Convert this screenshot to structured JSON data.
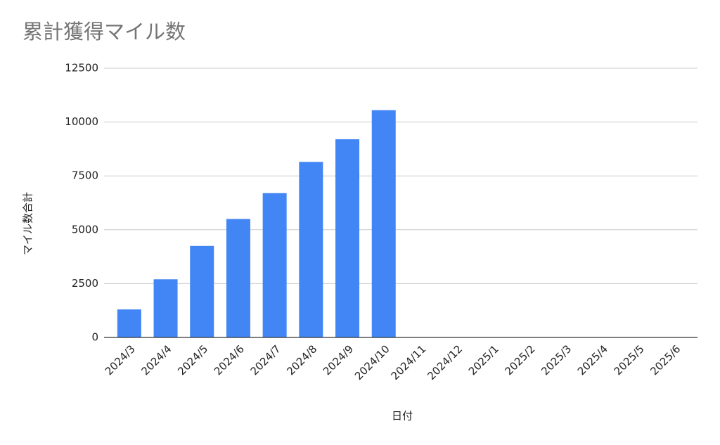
{
  "chart_data": {
    "type": "bar",
    "title": "累計獲得マイル数",
    "x_label": "日付",
    "y_label": "マイル数合計",
    "categories": [
      "2024/3",
      "2024/4",
      "2024/5",
      "2024/6",
      "2024/7",
      "2024/8",
      "2024/9",
      "2024/10",
      "2024/11",
      "2024/12",
      "2025/1",
      "2025/2",
      "2025/3",
      "2025/4",
      "2025/5",
      "2025/6"
    ],
    "values": [
      1300,
      2700,
      4250,
      5500,
      6700,
      8150,
      9200,
      10550,
      null,
      null,
      null,
      null,
      null,
      null,
      null,
      null
    ],
    "color": "#4285f4",
    "ylim": [
      0,
      12500
    ],
    "yticks": [
      0,
      2500,
      5000,
      7500,
      10000,
      12500
    ],
    "grid": true
  }
}
